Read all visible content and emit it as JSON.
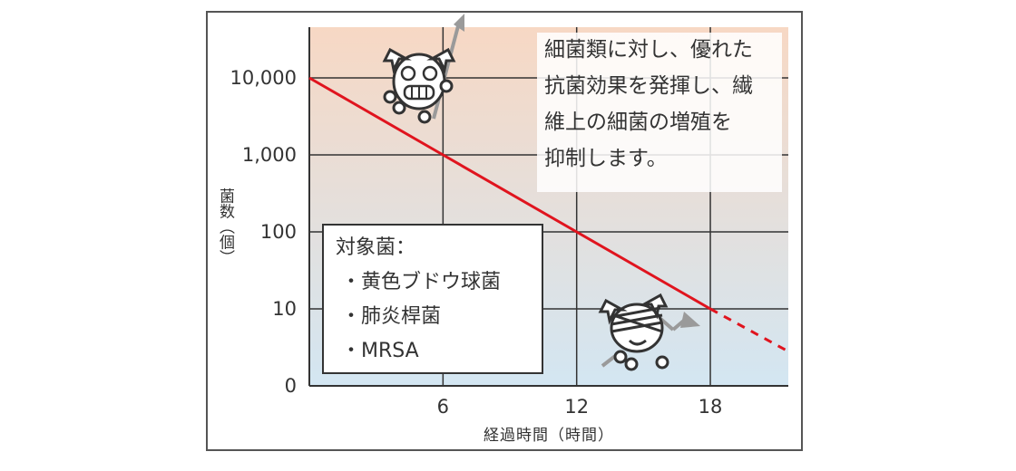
{
  "chart_data": {
    "type": "line",
    "xlabel": "経過時間（時間）",
    "ylabel": "菌数（個）",
    "x_ticks": [
      6,
      12,
      18
    ],
    "y_ticks": [
      "0",
      "10",
      "100",
      "1,000",
      "10,000"
    ],
    "y_scale": "log",
    "xlim": [
      0,
      21.5
    ],
    "series": [
      {
        "style": "solid",
        "color": "#e0141e",
        "points": [
          [
            0,
            10000
          ],
          [
            6,
            1000
          ],
          [
            12,
            100
          ],
          [
            18,
            10
          ]
        ]
      },
      {
        "style": "dashed",
        "color": "#e0141e",
        "points": [
          [
            18,
            10
          ],
          [
            21.5,
            2.8
          ]
        ]
      }
    ],
    "grid": true,
    "background_gradient": {
      "top": "#f7d8c4",
      "bottom": "#d3e6f2"
    }
  },
  "callout": {
    "lines": [
      "細菌類に対し、優れた",
      "抗菌効果を発揮し、繊",
      "維上の細菌の増殖を",
      "抑制します。"
    ]
  },
  "legend": {
    "title": "対象菌：",
    "items": [
      "・黄色ブドウ球菌",
      "・肺炎桿菌",
      "・MRSA"
    ]
  },
  "colors": {
    "axis": "#333333",
    "grid": "#333333",
    "line": "#e0141e",
    "arrow": "#9a9a9a",
    "frame": "#555555"
  },
  "icons": [
    "happy-germ-icon",
    "trapped-germ-icon"
  ]
}
